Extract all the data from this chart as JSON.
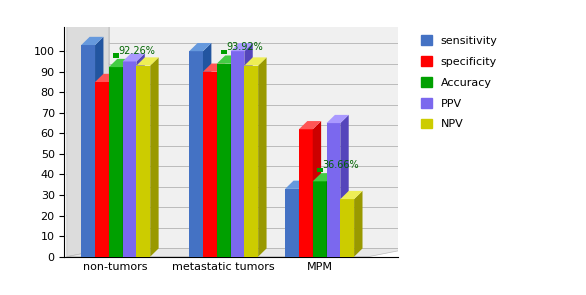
{
  "categories": [
    "non-tumors",
    "metastatic tumors",
    "MPM"
  ],
  "series": {
    "sensitivity": [
      103,
      100,
      33
    ],
    "specificity": [
      85,
      90,
      62
    ],
    "Accuracy": [
      92.26,
      93.92,
      36.66
    ],
    "PPV": [
      95,
      100,
      65
    ],
    "NPV": [
      93,
      93,
      28
    ]
  },
  "colors": {
    "sensitivity": "#4472C4",
    "specificity": "#FF0000",
    "Accuracy": "#00A000",
    "PPV": "#7B68EE",
    "NPV": "#CCCC00"
  },
  "bar_dark": {
    "sensitivity": "#2255A0",
    "specificity": "#CC0000",
    "Accuracy": "#007000",
    "PPV": "#5545BB",
    "NPV": "#999900"
  },
  "bar_top": {
    "sensitivity": "#6699DD",
    "specificity": "#FF5555",
    "Accuracy": "#44CC44",
    "PPV": "#AA99FF",
    "NPV": "#EEEE55"
  },
  "annotations": [
    {
      "text": "92.26%",
      "group": 0,
      "series": "Accuracy"
    },
    {
      "text": "93.92%",
      "group": 1,
      "series": "Accuracy"
    },
    {
      "text": "36.66%",
      "group": 2,
      "series": "Accuracy"
    }
  ],
  "ylim": [
    0,
    112
  ],
  "yticks": [
    0,
    10,
    20,
    30,
    40,
    50,
    60,
    70,
    80,
    90,
    100
  ],
  "legend_order": [
    "sensitivity",
    "specificity",
    "Accuracy",
    "PPV",
    "NPV"
  ],
  "background_color": "#FFFFFF",
  "wall_color": "#E8E8E8",
  "grid_color": "#BBBBBB"
}
